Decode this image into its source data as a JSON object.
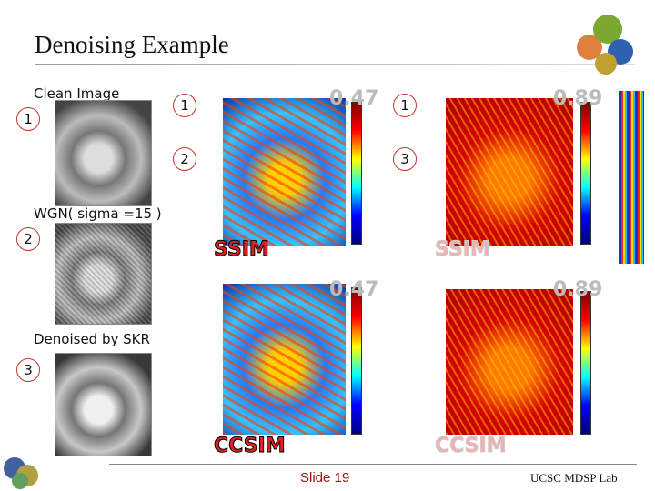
{
  "header": {
    "title": "Denoising Example"
  },
  "images": [
    {
      "caption": "Clean Image",
      "badge": "1"
    },
    {
      "caption": "WGN( sigma =15 )",
      "badge": "2"
    },
    {
      "caption": "Denoised by SKR",
      "badge": "3"
    }
  ],
  "maps": [
    {
      "pair": [
        "1",
        "2"
      ],
      "score": "0.47",
      "label": "SSIM"
    },
    {
      "pair": [
        "1",
        "3"
      ],
      "score": "0.89",
      "label": "SSIM"
    },
    {
      "score": "0.47",
      "label": "CCSIM"
    },
    {
      "score": "0.89",
      "label": "CCSIM"
    }
  ],
  "footer": {
    "slide": "Slide 19",
    "lab": "UCSC MDSP Lab"
  }
}
